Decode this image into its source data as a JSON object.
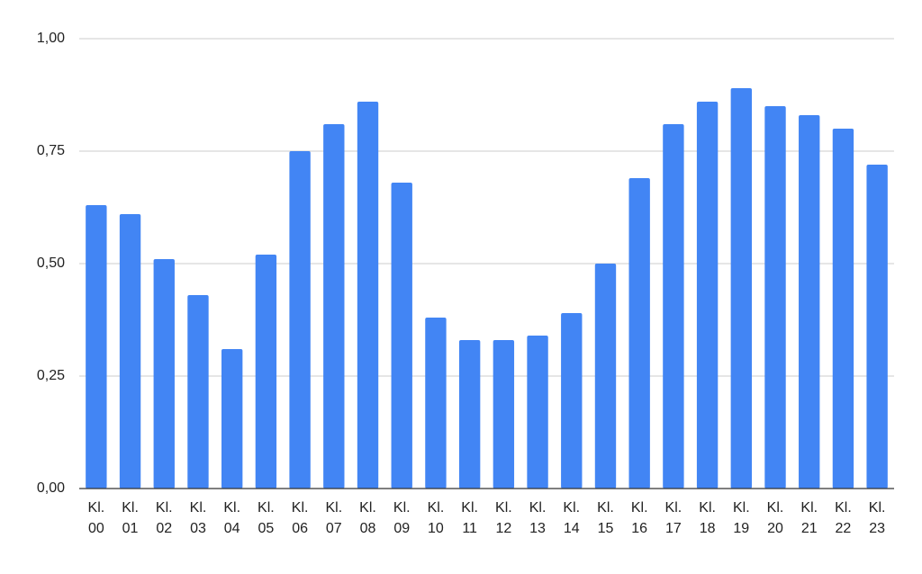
{
  "chart_data": {
    "type": "bar",
    "categories": [
      "Kl. 00",
      "Kl. 01",
      "Kl. 02",
      "Kl. 03",
      "Kl. 04",
      "Kl. 05",
      "Kl. 06",
      "Kl. 07",
      "Kl. 08",
      "Kl. 09",
      "Kl. 10",
      "Kl. 11",
      "Kl. 12",
      "Kl. 13",
      "Kl. 14",
      "Kl. 15",
      "Kl. 16",
      "Kl. 17",
      "Kl. 18",
      "Kl. 19",
      "Kl. 20",
      "Kl. 21",
      "Kl. 22",
      "Kl. 23"
    ],
    "values": [
      0.63,
      0.61,
      0.51,
      0.43,
      0.31,
      0.52,
      0.75,
      0.81,
      0.86,
      0.68,
      0.38,
      0.33,
      0.33,
      0.34,
      0.39,
      0.5,
      0.69,
      0.81,
      0.86,
      0.89,
      0.85,
      0.83,
      0.8,
      0.72
    ],
    "color": "#4285f4",
    "ylim": [
      0,
      1
    ],
    "yticks": [
      {
        "value": 0,
        "label": "0,00"
      },
      {
        "value": 0.25,
        "label": "0,25"
      },
      {
        "value": 0.5,
        "label": "0,50"
      },
      {
        "value": 0.75,
        "label": "0,75"
      },
      {
        "value": 1,
        "label": "1,00"
      }
    ],
    "grid": true
  }
}
